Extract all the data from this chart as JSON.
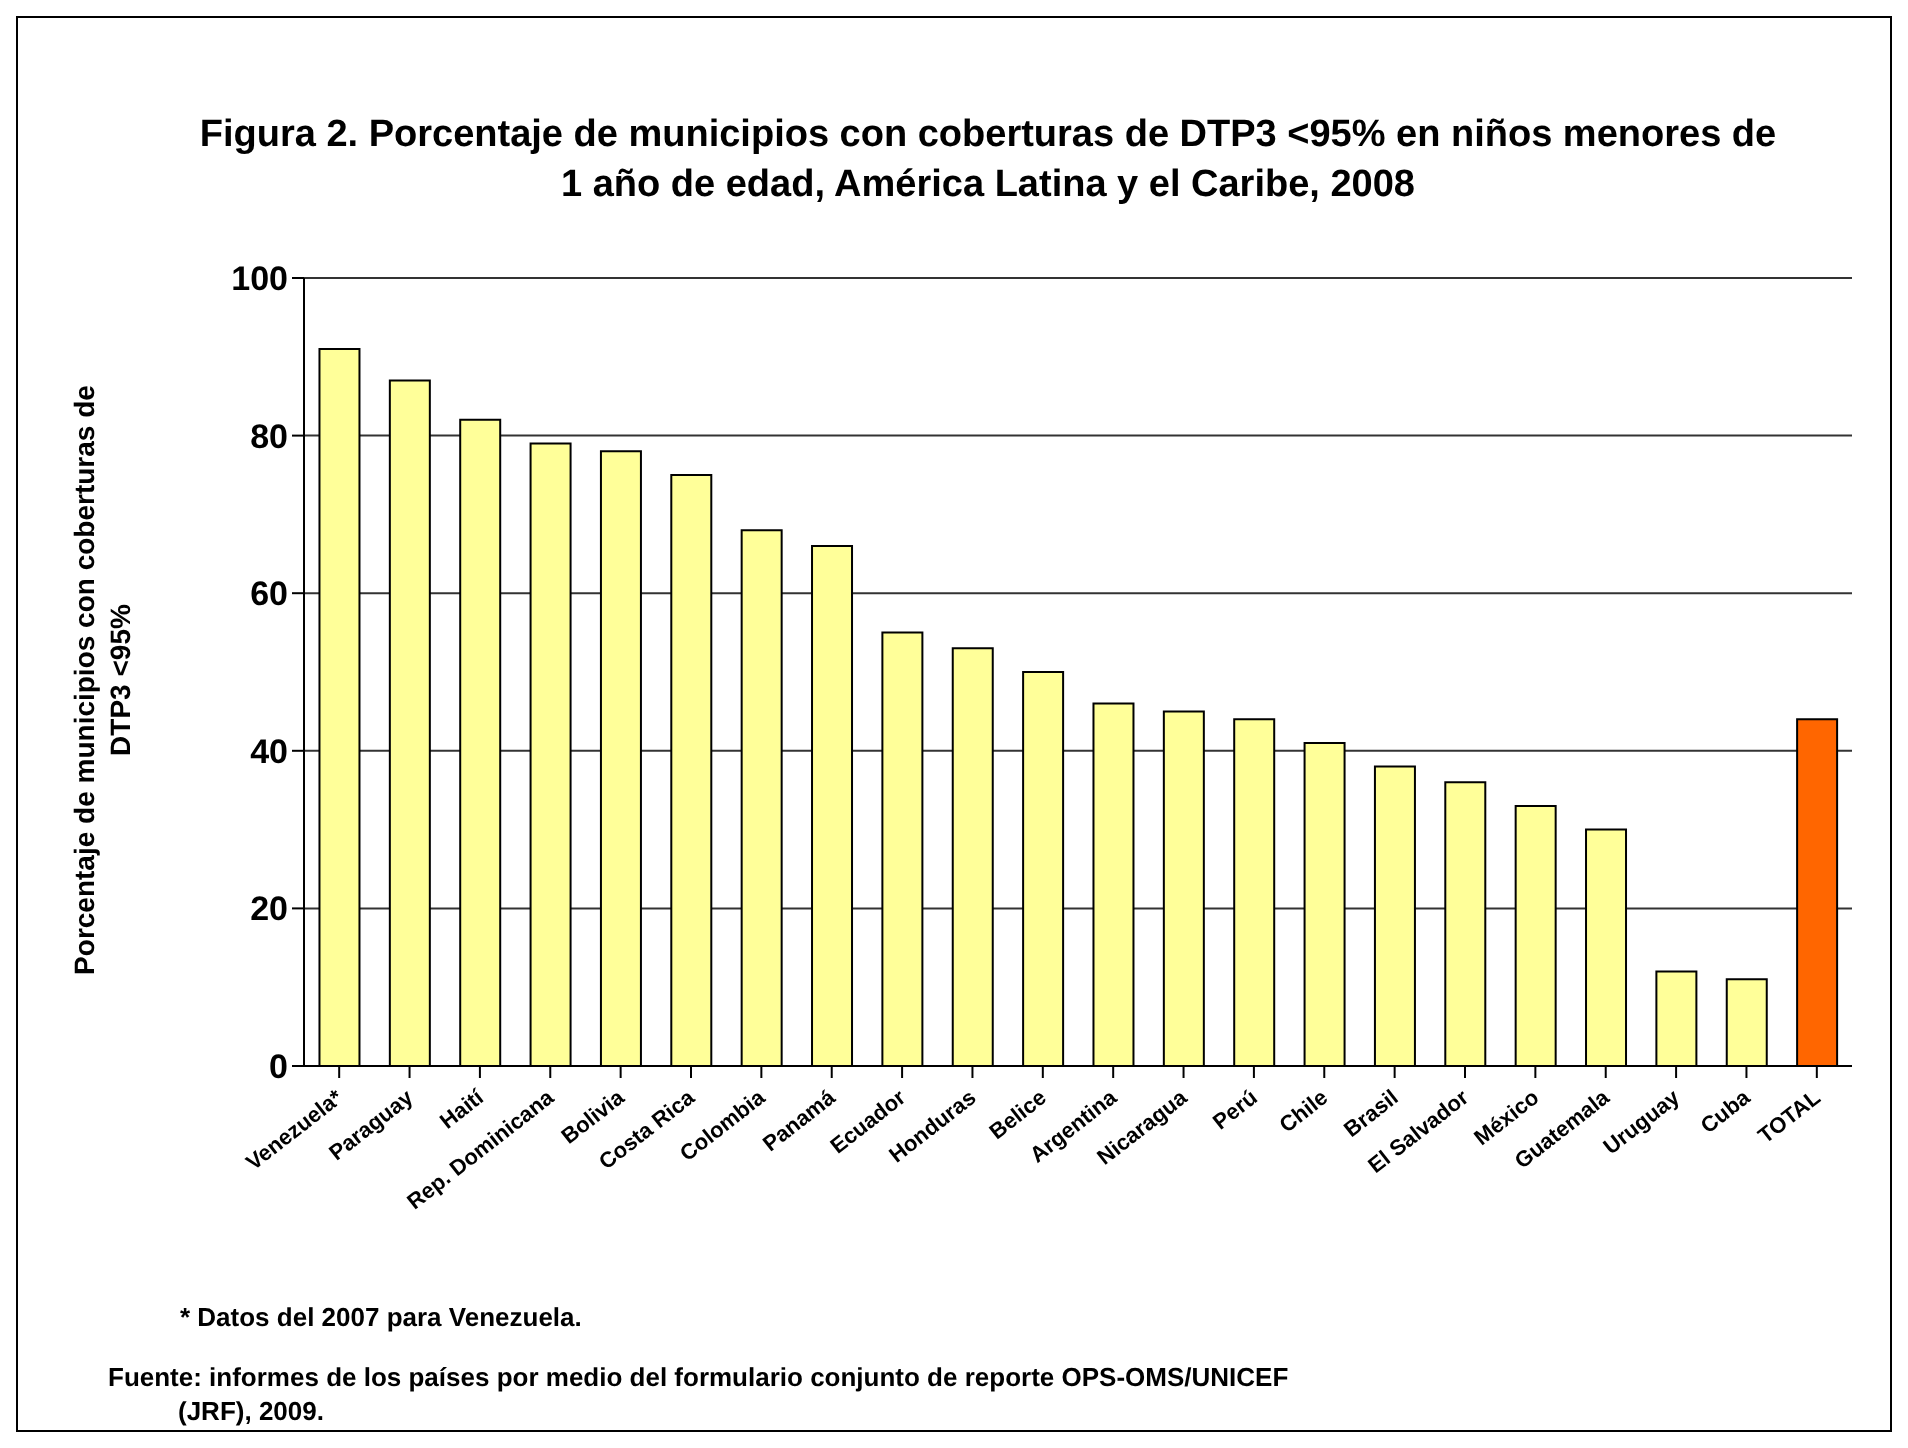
{
  "chart_data": {
    "type": "bar",
    "title": "Figura 2. Porcentaje de municipios con coberturas de DTP3 <95% en niños menores de 1 año de edad, América Latina y el Caribe, 2008",
    "ylabel": "Porcentaje de municipios con coberturas de DTP3 <95%",
    "categories": [
      "Venezuela*",
      "Paraguay",
      "Haití",
      "Rep. Dominicana",
      "Bolivia",
      "Costa Rica",
      "Colombia",
      "Panamá",
      "Ecuador",
      "Honduras",
      "Belice",
      "Argentina",
      "Nicaragua",
      "Perú",
      "Chile",
      "Brasil",
      "El Salvador",
      "México",
      "Guatemala",
      "Uruguay",
      "Cuba",
      "TOTAL"
    ],
    "values": [
      91,
      87,
      82,
      79,
      78,
      75,
      68,
      66,
      55,
      53,
      50,
      46,
      45,
      44,
      41,
      38,
      36,
      33,
      30,
      12,
      11,
      44
    ],
    "colors": [
      "#ffff99",
      "#ffff99",
      "#ffff99",
      "#ffff99",
      "#ffff99",
      "#ffff99",
      "#ffff99",
      "#ffff99",
      "#ffff99",
      "#ffff99",
      "#ffff99",
      "#ffff99",
      "#ffff99",
      "#ffff99",
      "#ffff99",
      "#ffff99",
      "#ffff99",
      "#ffff99",
      "#ffff99",
      "#ffff99",
      "#ffff99",
      "#ff6600"
    ],
    "ylim": [
      0,
      100
    ],
    "yticks": [
      0,
      20,
      40,
      60,
      80,
      100
    ],
    "grid": "y",
    "legend": false,
    "annotations": [
      "* Datos del 2007 para Venezuela.",
      "Fuente: informes de los países por medio del formulario conjunto de reporte OPS-OMS/UNICEF (JRF), 2009."
    ]
  }
}
